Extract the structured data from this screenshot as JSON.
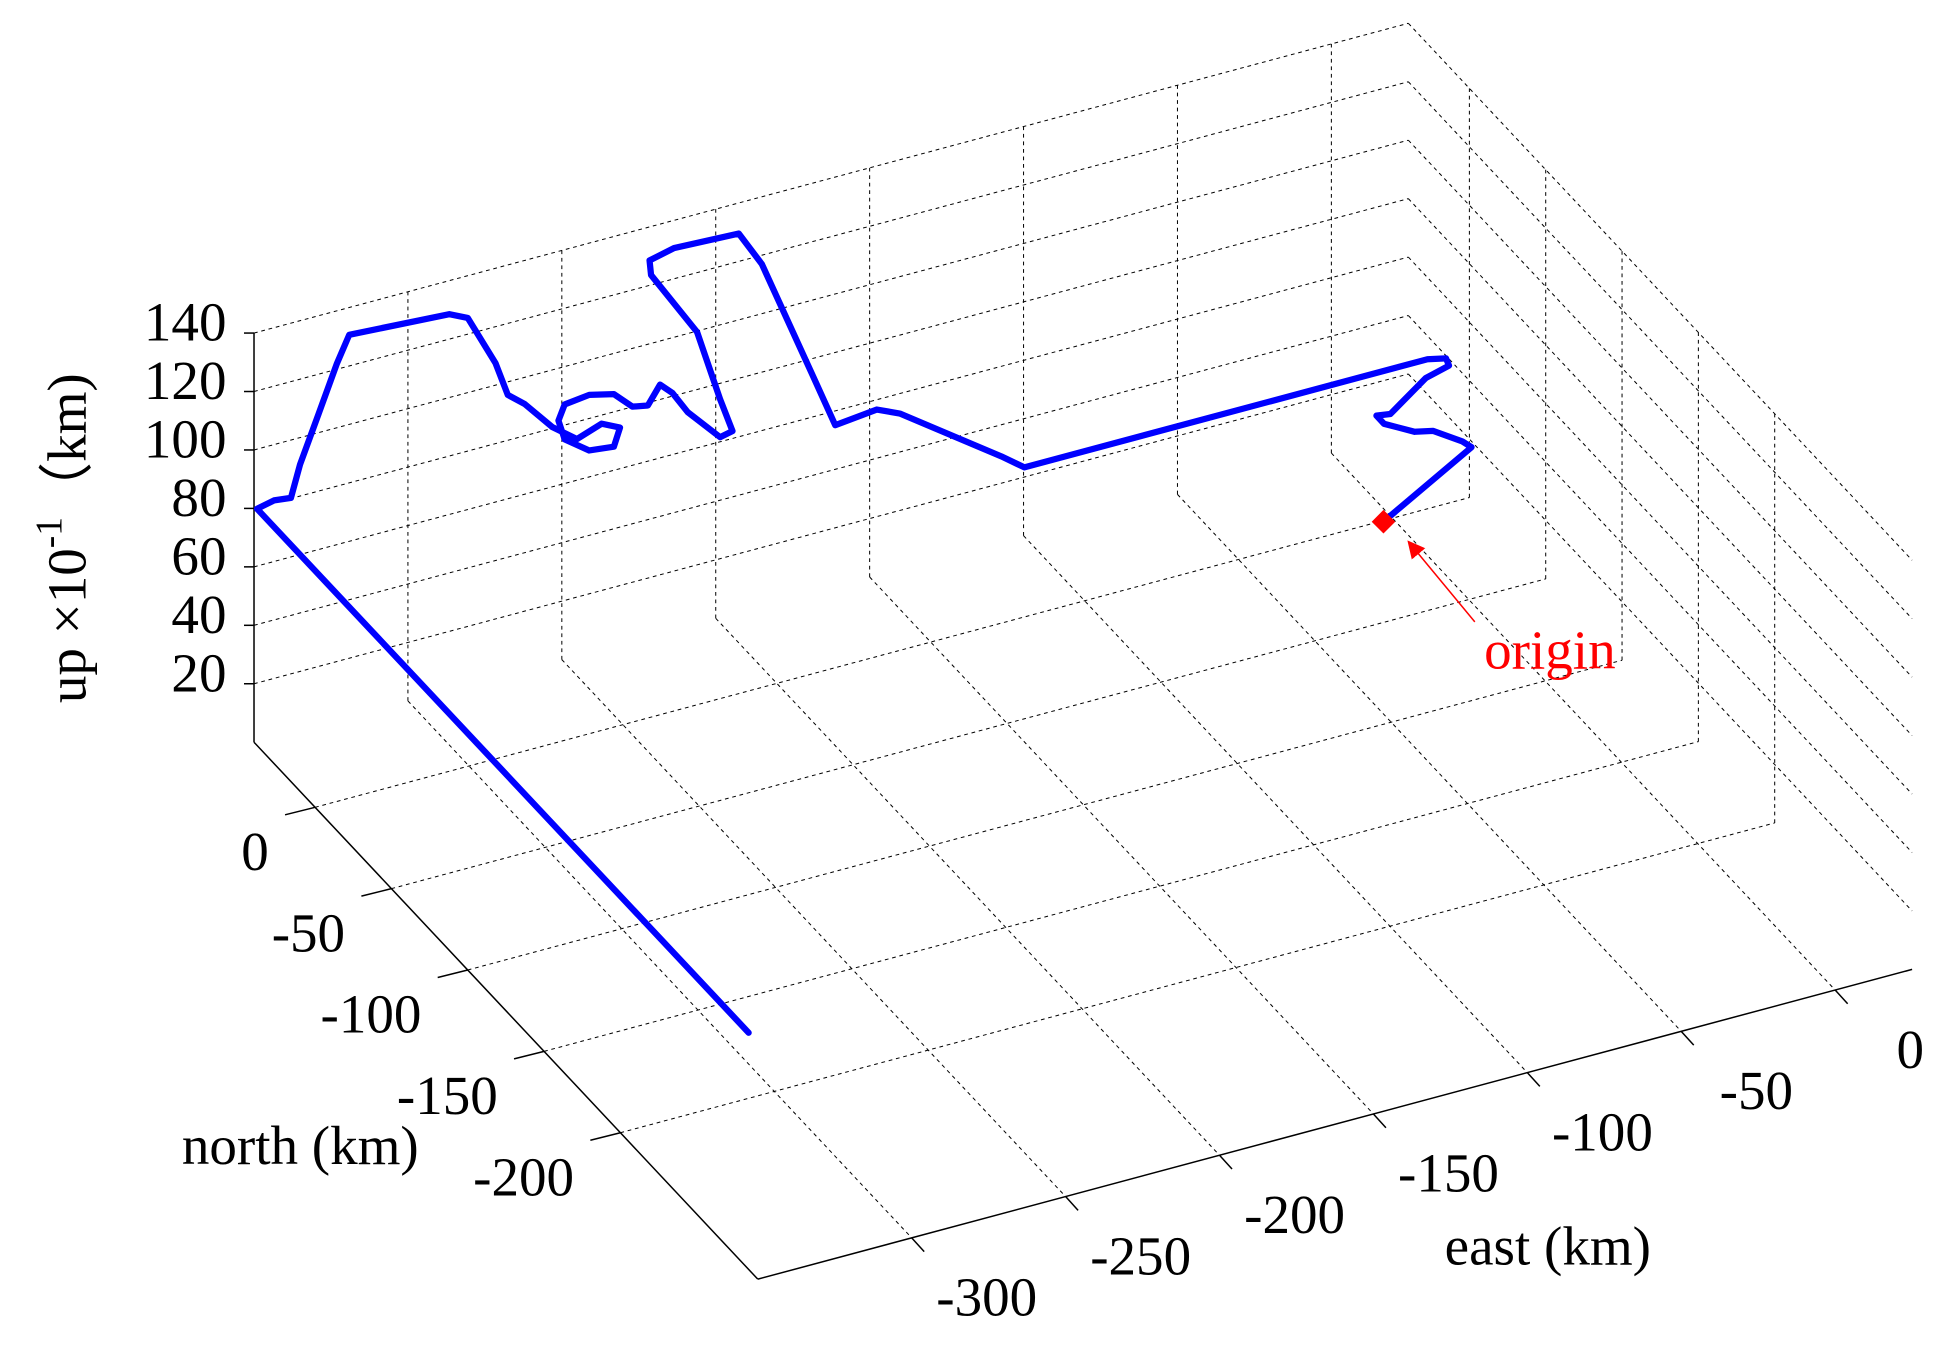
{
  "chart_data": {
    "type": "line3d",
    "xlabel": "east (km)",
    "ylabel": "north (km)",
    "zlabel": {
      "text": "up  ×10",
      "exponent": "-1",
      "unit": "（km)"
    },
    "xlim": [
      -350,
      25
    ],
    "ylim": [
      -290,
      40
    ],
    "zlim": [
      0,
      140
    ],
    "xticks": [
      -300,
      -250,
      -200,
      -150,
      -100,
      -50,
      0
    ],
    "yticks": [
      -200,
      -150,
      -100,
      -50,
      0
    ],
    "zticks": [
      20,
      40,
      60,
      80,
      100,
      120,
      140
    ],
    "grid": true,
    "series": [
      {
        "color": "#0000ff",
        "x": [
          -53,
          -12,
          -13,
          -18,
          -23,
          -29,
          -29,
          -25,
          -7,
          2,
          3,
          -2,
          -133,
          -137,
          -165,
          -170,
          -181,
          -186,
          -190,
          -195,
          -216,
          -224,
          -225,
          -212,
          -206,
          -202,
          -206,
          -219,
          -224,
          -228,
          -232,
          -237,
          -243,
          -251,
          -259,
          -261,
          -259,
          -251,
          -243,
          -241,
          -247,
          -255,
          -262,
          -270,
          -275,
          -279,
          -288,
          -294,
          -325,
          -328,
          -333,
          -338,
          -340,
          -345,
          -350,
          -350
        ],
        "y": [
          -101,
          -76,
          -72,
          -63,
          -61,
          -53,
          -48,
          -49,
          -36,
          -33,
          -29,
          -27,
          -27,
          -20,
          -10,
          -5,
          0,
          5,
          30,
          35,
          35,
          35,
          32,
          28,
          25,
          25,
          25,
          20,
          20,
          20,
          20,
          20,
          20,
          20,
          20,
          20,
          20,
          20,
          20,
          20,
          20,
          20,
          22,
          24,
          25,
          25,
          25,
          25,
          28,
          30,
          32,
          34,
          36,
          37,
          38,
          -284
        ],
        "z": [
          70,
          70,
          70,
          70,
          70,
          70,
          70,
          70,
          70,
          70,
          70,
          70,
          70,
          71,
          88,
          88,
          83,
          99,
          124,
          133,
          134,
          132,
          129,
          108,
          85,
          73,
          72,
          87,
          95,
          99,
          93,
          94,
          100,
          102,
          101,
          96,
          89,
          83,
          82,
          88,
          91,
          88,
          93,
          102,
          106,
          118,
          136,
          139,
          139,
          129,
          112,
          95,
          83,
          83,
          81,
          81
        ]
      }
    ],
    "annotation": {
      "text": "origin",
      "color": "#ff0000"
    }
  }
}
